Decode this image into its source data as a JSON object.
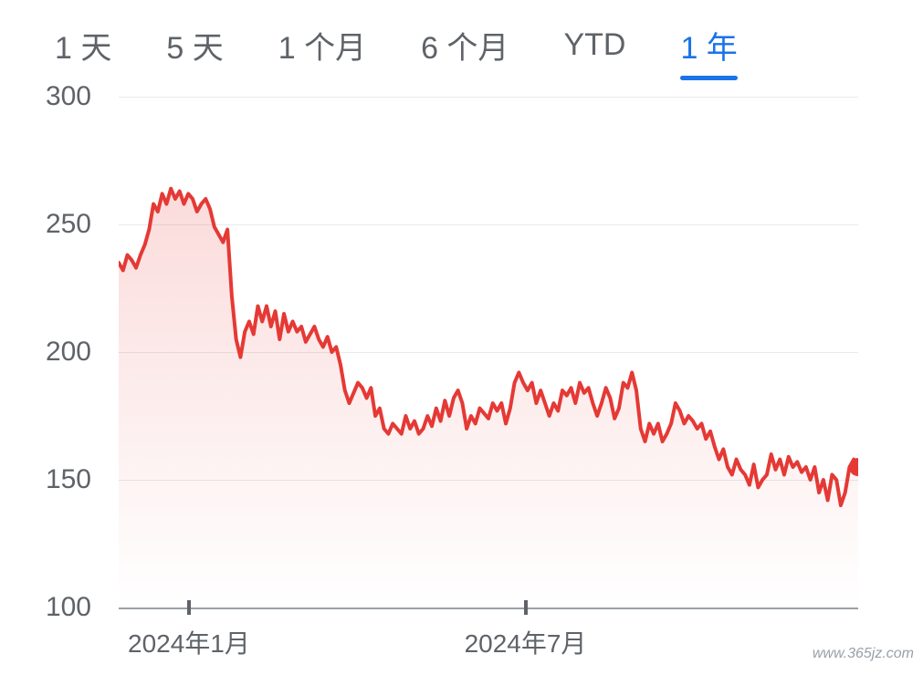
{
  "tabs": [
    {
      "label": "1 天",
      "active": false
    },
    {
      "label": "5 天",
      "active": false
    },
    {
      "label": "1 个月",
      "active": false
    },
    {
      "label": "6 个月",
      "active": false
    },
    {
      "label": "YTD",
      "active": false
    },
    {
      "label": "1 年",
      "active": true
    }
  ],
  "chart": {
    "type": "line",
    "title": "",
    "background_color": "#ffffff",
    "grid_color": "#e8eaed",
    "axis_color": "#9aa0a6",
    "label_color": "#5f6368",
    "label_fontsize": 30,
    "line_color": "#e53935",
    "line_width": 4,
    "fill_gradient_top": "rgba(229,57,53,0.18)",
    "fill_gradient_bottom": "rgba(229,57,53,0.0)",
    "end_dot_color": "#e53935",
    "end_dot_radius": 10,
    "ylim": [
      100,
      300
    ],
    "ytick_values": [
      100,
      150,
      200,
      250,
      300
    ],
    "ytick_labels": [
      "100",
      "150",
      "200",
      "250",
      "300"
    ],
    "x_ticks": [
      {
        "pos": 0.095,
        "label": "2024年1月"
      },
      {
        "pos": 0.55,
        "label": "2024年7月"
      }
    ],
    "data": [
      235,
      232,
      238,
      236,
      233,
      238,
      242,
      248,
      258,
      255,
      262,
      258,
      264,
      260,
      263,
      258,
      262,
      260,
      255,
      258,
      260,
      256,
      249,
      246,
      243,
      248,
      222,
      205,
      198,
      208,
      212,
      207,
      218,
      212,
      218,
      210,
      216,
      205,
      215,
      208,
      212,
      208,
      210,
      204,
      207,
      210,
      205,
      202,
      206,
      200,
      202,
      195,
      185,
      180,
      184,
      188,
      186,
      182,
      186,
      175,
      178,
      170,
      168,
      172,
      170,
      168,
      175,
      170,
      173,
      168,
      170,
      175,
      171,
      178,
      173,
      181,
      175,
      182,
      185,
      180,
      170,
      175,
      172,
      178,
      176,
      174,
      180,
      177,
      180,
      172,
      178,
      188,
      192,
      188,
      185,
      188,
      180,
      185,
      180,
      175,
      180,
      177,
      185,
      183,
      186,
      180,
      188,
      184,
      186,
      180,
      175,
      180,
      186,
      182,
      174,
      178,
      188,
      186,
      192,
      185,
      170,
      165,
      172,
      168,
      172,
      165,
      168,
      172,
      180,
      177,
      172,
      175,
      173,
      170,
      172,
      166,
      169,
      163,
      158,
      162,
      155,
      152,
      158,
      154,
      152,
      148,
      156,
      147,
      150,
      152,
      160,
      154,
      158,
      152,
      159,
      155,
      157,
      153,
      155,
      150,
      155,
      145,
      150,
      142,
      152,
      150,
      140,
      145,
      155,
      158,
      155
    ]
  },
  "watermark": "www.365jz.com"
}
